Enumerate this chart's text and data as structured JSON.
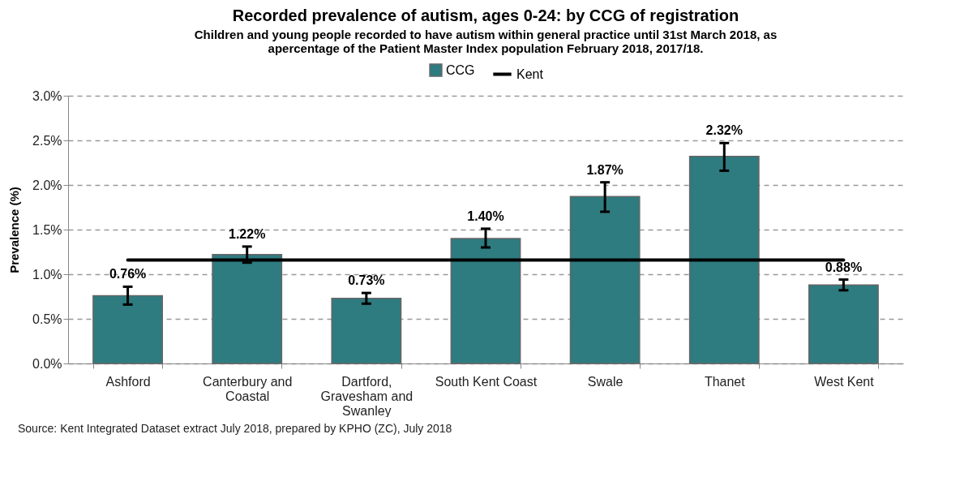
{
  "chart_data": {
    "type": "bar",
    "title": "Recorded prevalence of autism, ages 0-24: by CCG of registration",
    "subtitle": "Children and young people recorded to have autism within general practice until 31st March 2018, as apercentage of the Patient Master Index population February 2018, 2017/18.",
    "ylabel": "Prevalence (%)",
    "categories": [
      "Ashford",
      "Canterbury and Coastal",
      "Dartford, Gravesham and Swanley",
      "South Kent Coast",
      "Swale",
      "Thanet",
      "West Kent"
    ],
    "series": [
      {
        "name": "CCG",
        "color": "#2e7b80",
        "values": [
          0.76,
          1.22,
          0.73,
          1.4,
          1.87,
          2.32,
          0.88
        ],
        "errors": [
          [
            0.66,
            0.86
          ],
          [
            1.13,
            1.31
          ],
          [
            0.67,
            0.79
          ],
          [
            1.3,
            1.51
          ],
          [
            1.7,
            2.03
          ],
          [
            2.16,
            2.47
          ],
          [
            0.82,
            0.94
          ]
        ],
        "value_labels": [
          "0.76%",
          "1.22%",
          "0.73%",
          "1.40%",
          "1.87%",
          "2.32%",
          "0.88%"
        ]
      },
      {
        "name": "Kent",
        "type": "line",
        "color": "#000000",
        "values": [
          1.16,
          1.16,
          1.16,
          1.16,
          1.16,
          1.16,
          1.16
        ]
      }
    ],
    "ylim": [
      0,
      3
    ],
    "yticks": [
      {
        "value": 0,
        "label": "0.0%"
      },
      {
        "value": 0.5,
        "label": "0.5%"
      },
      {
        "value": 1,
        "label": "1.0%"
      },
      {
        "value": 1.5,
        "label": "1.5%"
      },
      {
        "value": 2,
        "label": "2.0%"
      },
      {
        "value": 2.5,
        "label": "2.5%"
      },
      {
        "value": 3,
        "label": "3.0%"
      }
    ],
    "grid": "y",
    "legend": "top",
    "annotations": [
      "Source: Kent Integrated Dataset extract July 2018, prepared by KPHO (ZC), July 2018"
    ]
  }
}
